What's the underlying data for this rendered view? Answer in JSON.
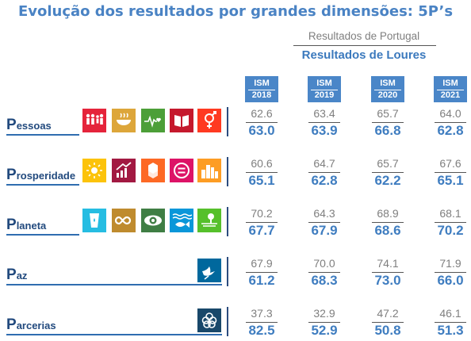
{
  "title": "Evolução dos resultados por grandes dimensões: 5P’s",
  "legend": {
    "portugal": "Resultados de Portugal",
    "loures": "Resultados de Loures"
  },
  "years": [
    {
      "label": "ISM",
      "year": "2018"
    },
    {
      "label": "ISM",
      "year": "2019"
    },
    {
      "label": "ISM",
      "year": "2020"
    },
    {
      "label": "ISM",
      "year": "2021"
    }
  ],
  "rows": [
    {
      "cap": "P",
      "rest": "essoas",
      "icons": [
        {
          "name": "no-poverty-icon",
          "color": "#e5243b"
        },
        {
          "name": "zero-hunger-icon",
          "color": "#dda63a"
        },
        {
          "name": "good-health-icon",
          "color": "#4c9f38"
        },
        {
          "name": "quality-education-icon",
          "color": "#c5192d"
        },
        {
          "name": "gender-equality-icon",
          "color": "#ff3a21"
        }
      ],
      "pt": [
        "62.6",
        "63.4",
        "65.7",
        "64.0"
      ],
      "lo": [
        "63.0",
        "63.9",
        "66.8",
        "62.8"
      ]
    },
    {
      "cap": "P",
      "rest": "rosperidade",
      "icons": [
        {
          "name": "clean-energy-icon",
          "color": "#fcc30b"
        },
        {
          "name": "decent-work-icon",
          "color": "#a21942"
        },
        {
          "name": "industry-innovation-icon",
          "color": "#fd6925"
        },
        {
          "name": "reduced-inequalities-icon",
          "color": "#dd1367"
        },
        {
          "name": "sustainable-cities-icon",
          "color": "#fd9d24"
        }
      ],
      "pt": [
        "60.6",
        "64.7",
        "65.7",
        "67.6"
      ],
      "lo": [
        "65.1",
        "62.8",
        "62.2",
        "65.1"
      ]
    },
    {
      "cap": "P",
      "rest": "laneta",
      "icons": [
        {
          "name": "clean-water-icon",
          "color": "#26bde2"
        },
        {
          "name": "responsible-consumption-icon",
          "color": "#bf8b2e"
        },
        {
          "name": "climate-action-icon",
          "color": "#3f7e44"
        },
        {
          "name": "life-below-water-icon",
          "color": "#0a97d9"
        },
        {
          "name": "life-on-land-icon",
          "color": "#56c02b"
        }
      ],
      "pt": [
        "70.2",
        "64.3",
        "68.9",
        "68.1"
      ],
      "lo": [
        "67.7",
        "67.9",
        "68.6",
        "70.2"
      ]
    },
    {
      "cap": "P",
      "rest": "az",
      "icons": [
        {
          "name": "peace-justice-icon",
          "color": "#00689d"
        }
      ],
      "pt": [
        "67.9",
        "70.0",
        "74.1",
        "71.9"
      ],
      "lo": [
        "61.2",
        "68.3",
        "73.0",
        "66.0"
      ]
    },
    {
      "cap": "P",
      "rest": "arcerias",
      "icons": [
        {
          "name": "partnerships-icon",
          "color": "#19486a"
        }
      ],
      "pt": [
        "37.3",
        "32.9",
        "47.2",
        "46.1"
      ],
      "lo": [
        "82.5",
        "52.9",
        "50.8",
        "51.3"
      ]
    }
  ]
}
